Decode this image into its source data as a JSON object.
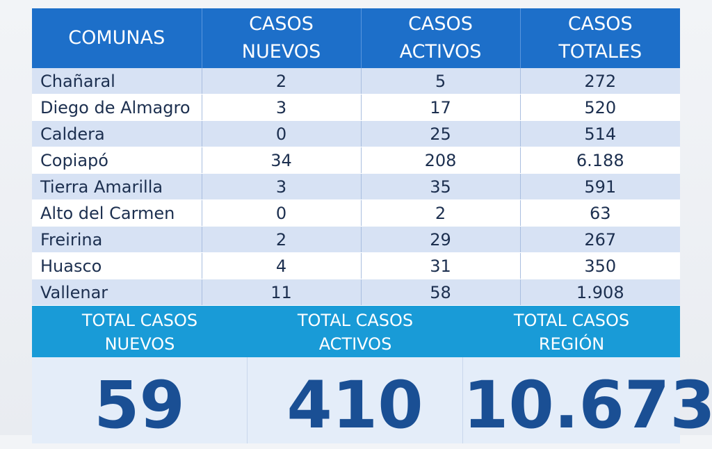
{
  "table": {
    "headers": {
      "comunas": "COMUNAS",
      "nuevos": [
        "CASOS",
        "NUEVOS"
      ],
      "activos": [
        "CASOS",
        "ACTIVOS"
      ],
      "totales": [
        "CASOS",
        "TOTALES"
      ]
    },
    "rows": [
      {
        "comuna": "Chañaral",
        "nuevos": "2",
        "activos": "5",
        "totales": "272"
      },
      {
        "comuna": "Diego de Almagro",
        "nuevos": "3",
        "activos": "17",
        "totales": "520"
      },
      {
        "comuna": "Caldera",
        "nuevos": "0",
        "activos": "25",
        "totales": "514"
      },
      {
        "comuna": "Copiapó",
        "nuevos": "34",
        "activos": "208",
        "totales": "6.188"
      },
      {
        "comuna": "Tierra Amarilla",
        "nuevos": "3",
        "activos": "35",
        "totales": "591"
      },
      {
        "comuna": "Alto del Carmen",
        "nuevos": "0",
        "activos": "2",
        "totales": "63"
      },
      {
        "comuna": "Freirina",
        "nuevos": "2",
        "activos": "29",
        "totales": "267"
      },
      {
        "comuna": "Huasco",
        "nuevos": "4",
        "activos": "31",
        "totales": "350"
      },
      {
        "comuna": "Vallenar",
        "nuevos": "11",
        "activos": "58",
        "totales": "1.908"
      }
    ]
  },
  "totals": {
    "labels": [
      [
        "TOTAL CASOS",
        "NUEVOS"
      ],
      [
        "TOTAL CASOS",
        "ACTIVOS"
      ],
      [
        "TOTAL CASOS",
        "REGIÓN"
      ]
    ],
    "values": [
      "59",
      "410",
      "10.673"
    ]
  },
  "colors": {
    "header_blue": "#1d6fc9",
    "totals_blue": "#199bd7",
    "number_blue": "#1a4f94",
    "row_stripe": "#d7e2f4"
  }
}
